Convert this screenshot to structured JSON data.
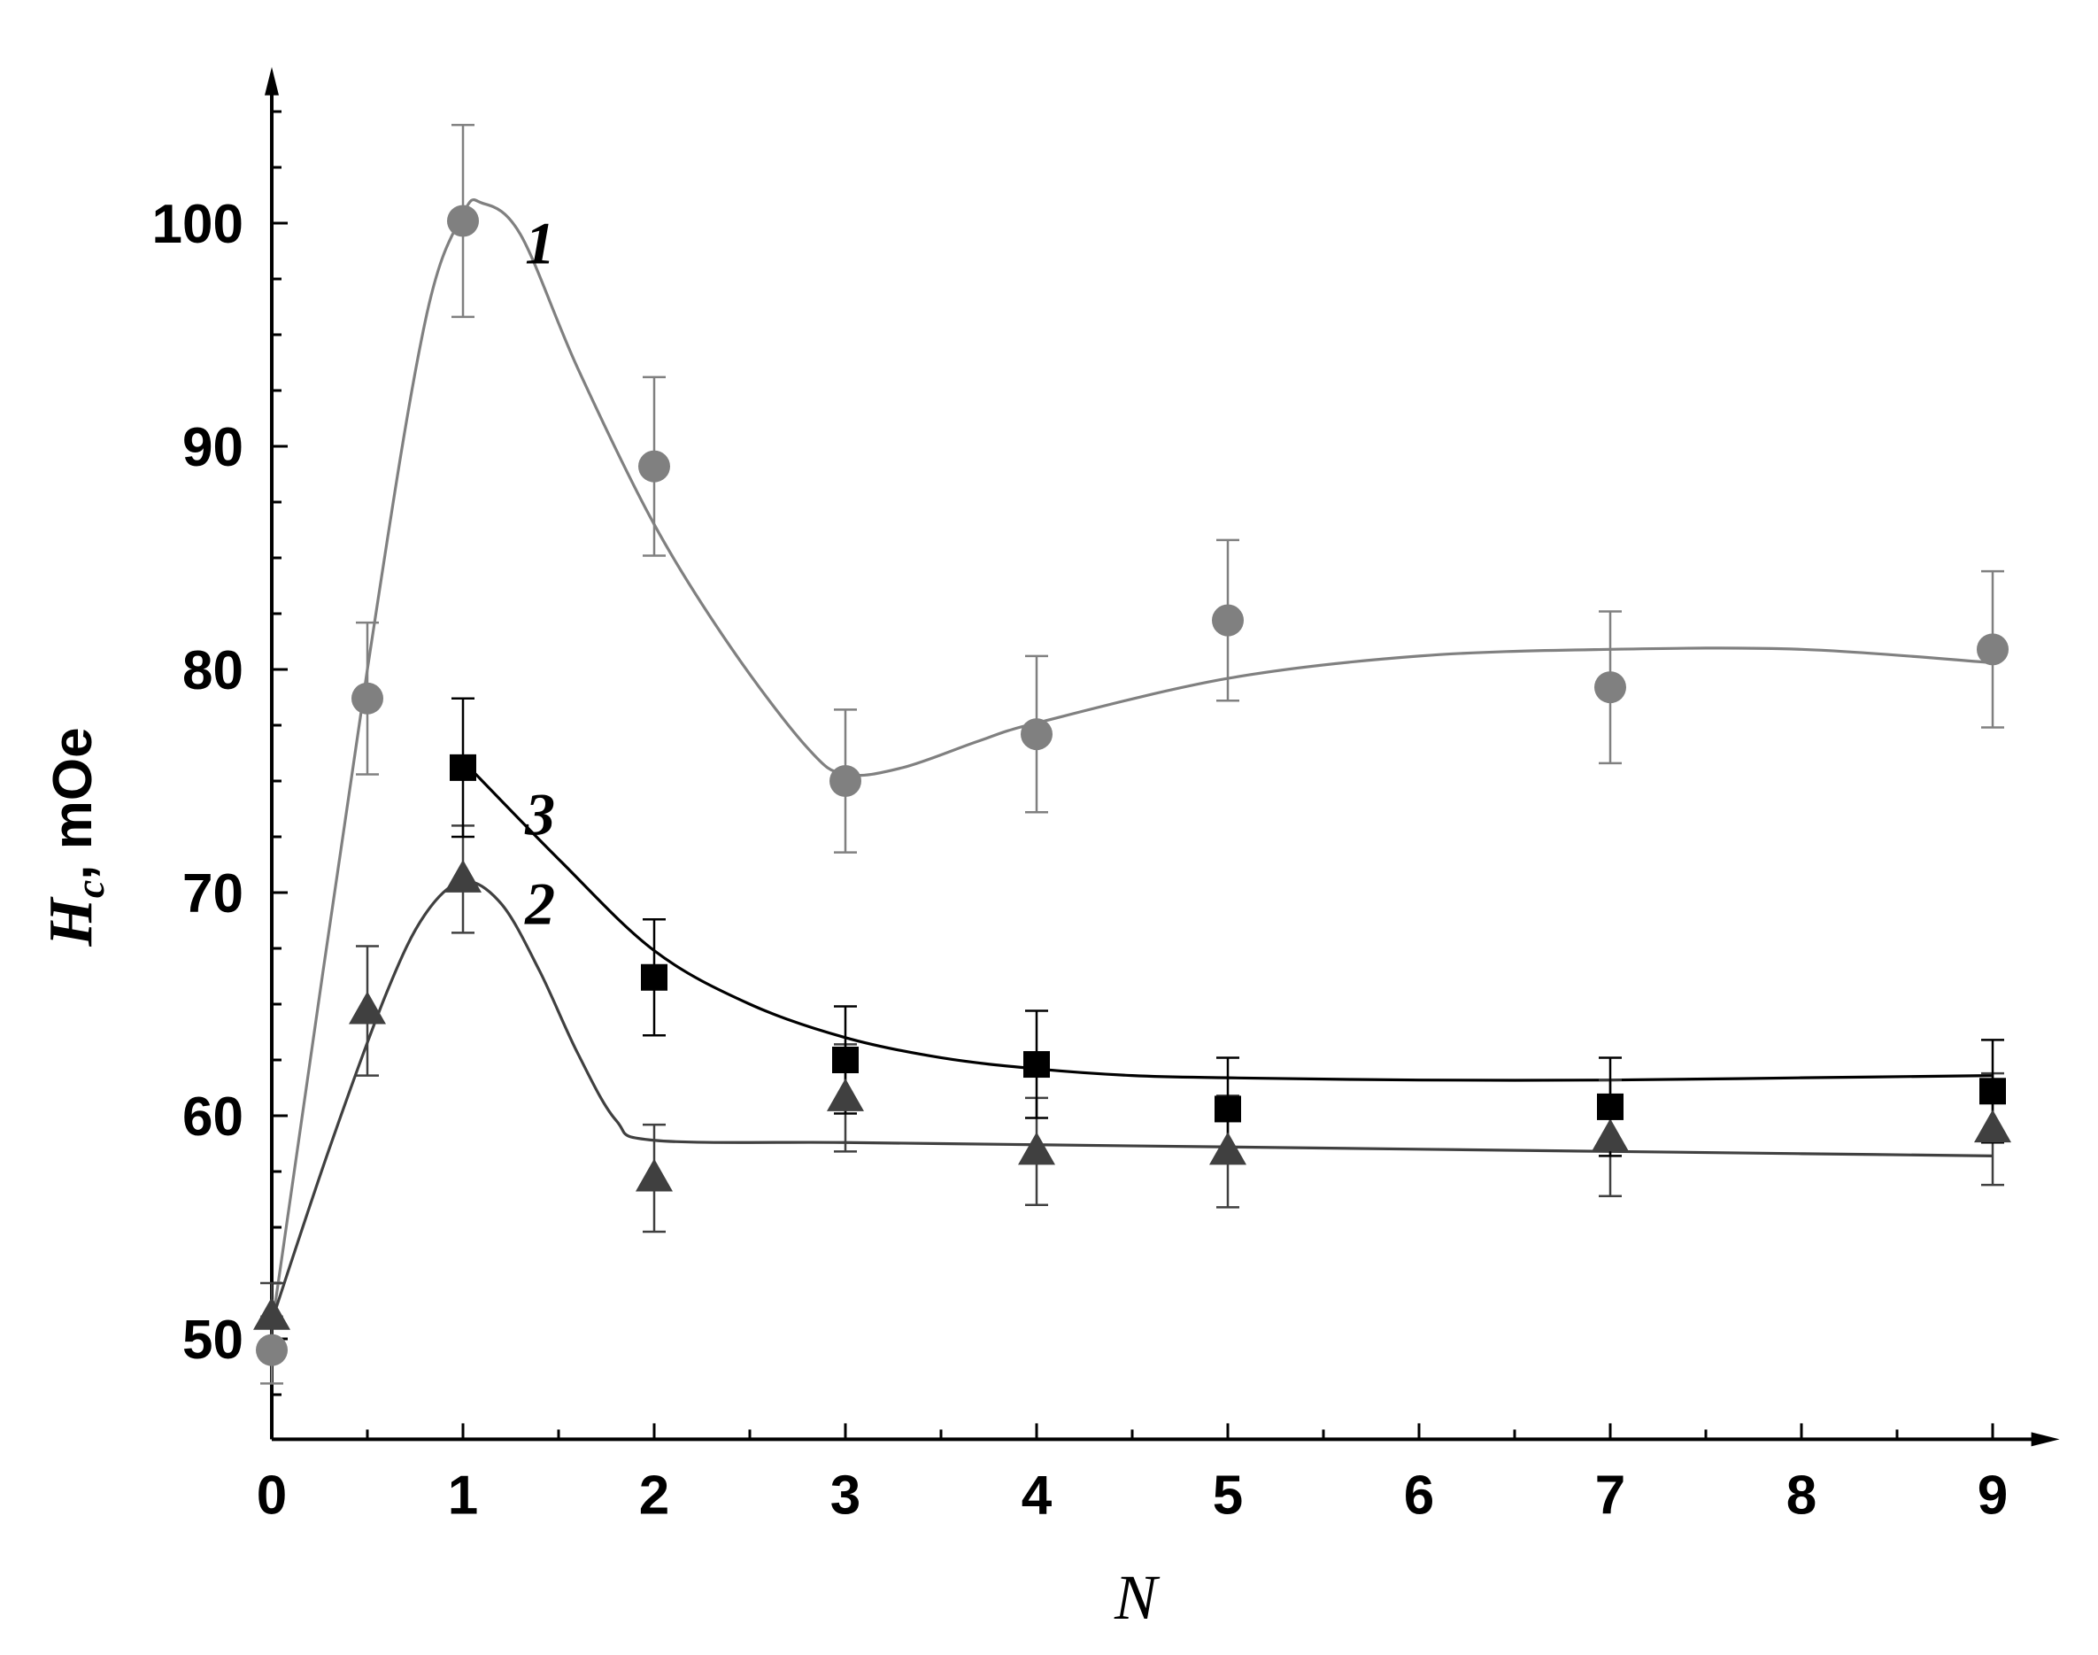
{
  "chart_data": {
    "type": "scatter",
    "title": "",
    "xlabel": "N",
    "ylabel": {
      "main": "H",
      "subscript": "c",
      "unit": ", mOe"
    },
    "xlim": [
      0,
      9.35
    ],
    "ylim": [
      45.5,
      107
    ],
    "x_ticks": [
      0,
      1,
      2,
      3,
      4,
      5,
      6,
      7,
      8,
      9
    ],
    "y_ticks": [
      50,
      60,
      70,
      80,
      90,
      100
    ],
    "grid": false,
    "legend": "none",
    "colors": {
      "series1": "#808080",
      "series2": "#404040",
      "series3": "#000000",
      "axis": "#000000"
    },
    "series": [
      {
        "name": "1",
        "marker": "circle",
        "x": [
          0,
          0.5,
          1,
          2,
          3,
          4,
          5,
          7,
          9
        ],
        "y": [
          49.5,
          78.7,
          100.1,
          89.1,
          75.0,
          77.1,
          82.2,
          79.2,
          80.9
        ],
        "err": [
          1.5,
          3.4,
          4.3,
          4.0,
          3.2,
          3.5,
          3.6,
          3.4,
          3.5
        ],
        "fit_x": [
          0,
          0.5,
          0.8,
          1.0,
          1.1,
          1.3,
          1.6,
          2.0,
          2.4,
          2.8,
          3.0,
          3.3,
          3.7,
          4.0,
          5.0,
          6.0,
          7.0,
          8.0,
          9.0
        ],
        "fit_y": [
          50.5,
          80.0,
          95.5,
          100.4,
          100.9,
          99.5,
          93.5,
          86.5,
          81.0,
          76.5,
          75.3,
          75.6,
          76.8,
          77.6,
          79.6,
          80.6,
          80.9,
          80.9,
          80.3
        ]
      },
      {
        "name": "2",
        "marker": "triangle",
        "x": [
          0,
          0.5,
          1,
          2,
          3,
          4,
          5,
          7,
          9
        ],
        "y": [
          51.0,
          64.7,
          70.6,
          57.2,
          60.8,
          58.4,
          58.4,
          59.0,
          59.4
        ],
        "err": [
          1.5,
          2.9,
          2.4,
          2.4,
          2.4,
          2.4,
          2.5,
          2.6,
          2.5
        ],
        "fit_x": [
          0,
          0.3,
          0.6,
          0.8,
          1.0,
          1.2,
          1.4,
          1.6,
          1.8,
          2.0,
          3.0,
          4.0,
          5.0,
          6.0,
          7.0,
          8.0,
          9.0
        ],
        "fit_y": [
          50.8,
          58.5,
          65.5,
          69.0,
          70.5,
          69.5,
          66.5,
          62.8,
          59.8,
          58.9,
          58.8,
          58.7,
          58.6,
          58.5,
          58.4,
          58.3,
          58.2
        ]
      },
      {
        "name": "3",
        "marker": "square",
        "x": [
          1,
          2,
          3,
          4,
          5,
          7,
          9
        ],
        "y": [
          75.6,
          66.2,
          62.5,
          62.3,
          60.3,
          60.4,
          61.1
        ],
        "err": [
          3.1,
          2.6,
          2.4,
          2.4,
          2.3,
          2.2,
          2.3
        ],
        "fit_x": [
          1.0,
          1.5,
          2.0,
          2.5,
          3.0,
          3.5,
          4.0,
          4.5,
          5.0,
          6.0,
          7.0,
          8.0,
          9.0
        ],
        "fit_y": [
          75.9,
          71.5,
          67.4,
          65.0,
          63.5,
          62.6,
          62.1,
          61.8,
          61.7,
          61.6,
          61.6,
          61.7,
          61.8
        ]
      }
    ]
  }
}
